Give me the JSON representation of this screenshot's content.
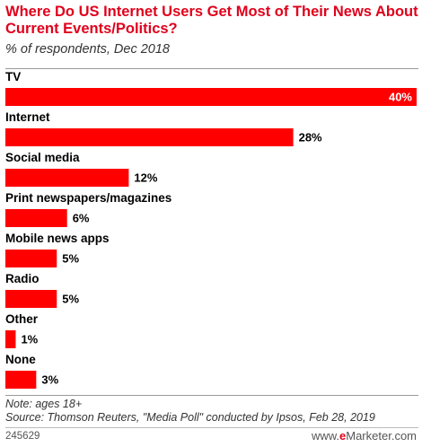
{
  "header": {
    "title": "Where Do US Internet Users Get Most of Their News About Current Events/Politics?",
    "subtitle": "% of respondents, Dec 2018"
  },
  "chart_data": {
    "type": "bar",
    "orientation": "horizontal",
    "categories": [
      "TV",
      "Internet",
      "Social media",
      "Print newspapers/magazines",
      "Mobile news apps",
      "Radio",
      "Other",
      "None"
    ],
    "values": [
      40,
      28,
      12,
      6,
      5,
      5,
      1,
      3
    ],
    "value_labels": [
      "40%",
      "28%",
      "12%",
      "6%",
      "5%",
      "5%",
      "1%",
      "3%"
    ],
    "xlim": [
      0,
      40
    ],
    "grid": false,
    "bar_color": "#ff0000"
  },
  "footer": {
    "note": "Note: ages 18+",
    "source": "Source: Thomson Reuters, \"Media Poll\" conducted by Ipsos, Feb 28, 2019",
    "chart_id": "245629",
    "logo_prefix": "e",
    "logo_suffix": "Marketer",
    "logo_domain": ".com"
  },
  "colors": {
    "title": "#e0001b",
    "bar": "#ff0000"
  }
}
